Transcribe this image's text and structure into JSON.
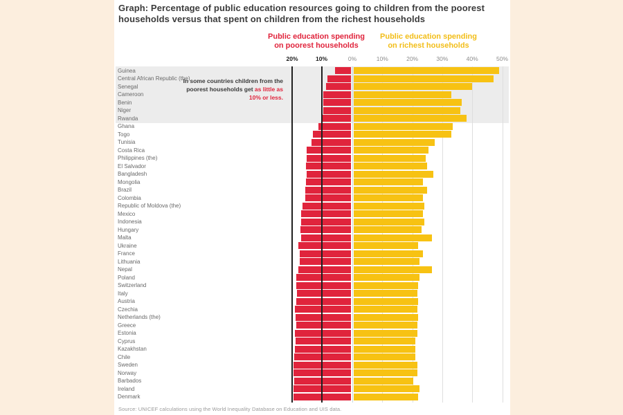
{
  "title": "Graph: Percentage of public education resources going to children from the poorest households versus that spent on children from the richest households",
  "legend": {
    "poorest_label": "Public education spending\non poorest households",
    "richest_label": "Public education spending\non richest households"
  },
  "annotation": {
    "black_text": "In some countries children from the poorest households get ",
    "red_text": "as little as 10% or less."
  },
  "source": "Source: UNICEF calculations using the World Inequality Database on Education and UIS data.",
  "colors": {
    "poorest_bar": "#e0243c",
    "richest_bar": "#f7c213",
    "highlight_band": "#ececec",
    "page_background": "#fceede",
    "panel_background": "#ffffff"
  },
  "chart_data": {
    "type": "bar",
    "orientation": "horizontal-diverging",
    "unit": "%",
    "title": "Percentage of public education resources going to children from the poorest households versus that spent on children from the richest households",
    "categories": [
      "Guinea",
      "Central African Republic (the)",
      "Senegal",
      "Cameroon",
      "Benin",
      "Niger",
      "Rwanda",
      "Ghana",
      "Togo",
      "Tunisia",
      "Costa Rica",
      "Philippines (the)",
      "El Salvador",
      "Bangladesh",
      "Mongolia",
      "Brazil",
      "Colombia",
      "Republic of Moldova (the)",
      "Mexico",
      "Indonesia",
      "Hungary",
      "Malta",
      "Ukraine",
      "France",
      "Lithuania",
      "Nepal",
      "Poland",
      "Switzerland",
      "Italy",
      "Austria",
      "Czechia",
      "Netherlands (the)",
      "Greece",
      "Estonia",
      "Cyprus",
      "Kazakhstan",
      "Chile",
      "Sweden",
      "Norway",
      "Barbados",
      "Ireland",
      "Denmark"
    ],
    "series": [
      {
        "name": "Public education spending on poorest households",
        "direction": "left",
        "color": "#e0243c",
        "values": [
          5.5,
          8,
          8.5,
          9.5,
          9.5,
          9.5,
          10,
          11,
          13,
          13.5,
          15,
          15,
          15.2,
          15,
          15.2,
          15.5,
          15.5,
          16.5,
          17,
          17,
          17.2,
          17,
          18,
          17.5,
          17.5,
          18,
          18.5,
          18.5,
          18.3,
          18.6,
          19,
          18.9,
          18.6,
          19.1,
          18.9,
          19.1,
          19.3,
          19.5,
          19.5,
          19.3,
          19.5,
          19.5
        ]
      },
      {
        "name": "Public education spending on richest households",
        "direction": "right",
        "color": "#f7c213",
        "values": [
          49,
          47,
          40,
          33,
          36.5,
          36,
          38,
          33.5,
          33,
          27.5,
          25.5,
          24.5,
          25,
          27,
          23.5,
          25,
          23.5,
          24,
          23.5,
          24,
          23,
          26.5,
          22,
          23.5,
          22.5,
          26.5,
          22.5,
          22,
          21.7,
          22,
          21.7,
          22,
          21.7,
          21.7,
          21,
          21,
          21,
          21.7,
          21.6,
          20.3,
          22.3,
          21.9
        ]
      }
    ],
    "x_axis": {
      "left_ticks": [
        "20%",
        "10%"
      ],
      "right_ticks": [
        "0%",
        "10%",
        "20%",
        "30%",
        "40%",
        "50%"
      ],
      "left_range": [
        0,
        20
      ],
      "right_range": [
        0,
        50
      ]
    },
    "grid": true,
    "highlighted_rows": [
      "Guinea",
      "Central African Republic (the)",
      "Senegal",
      "Cameroon",
      "Benin",
      "Niger",
      "Rwanda"
    ],
    "annotation": "In some countries children from the poorest households get as little as 10% or less."
  }
}
